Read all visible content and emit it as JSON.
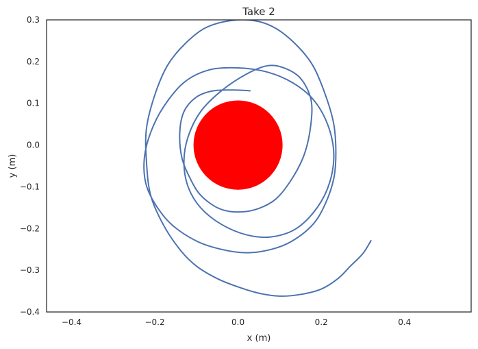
{
  "chart_data": {
    "type": "line",
    "title": "Take 2",
    "xlabel": "x (m)",
    "ylabel": "y (m)",
    "xlim": [
      -0.46,
      0.56
    ],
    "ylim": [
      -0.4,
      0.3
    ],
    "xticks": [
      -0.4,
      -0.2,
      0.0,
      0.2,
      0.4
    ],
    "xtick_labels": [
      "−0.4",
      "−0.2",
      "0.0",
      "0.2",
      "0.4"
    ],
    "yticks": [
      -0.4,
      -0.3,
      -0.2,
      -0.1,
      0.0,
      0.1,
      0.2,
      0.3
    ],
    "ytick_labels": [
      "−0.4",
      "−0.3",
      "−0.2",
      "−0.1",
      "0.0",
      "0.1",
      "0.2",
      "0.3"
    ],
    "grid": false,
    "series": [
      {
        "color": "#4c72b0",
        "x": [
          0.32,
          0.3,
          0.27,
          0.24,
          0.2,
          0.15,
          0.1,
          0.05,
          0.0,
          -0.05,
          -0.1,
          -0.14,
          -0.18,
          -0.21,
          -0.22,
          -0.22,
          -0.2,
          -0.17,
          -0.13,
          -0.08,
          -0.02,
          0.04,
          0.09,
          0.14,
          0.18,
          0.21,
          0.23,
          0.235,
          0.23,
          0.21,
          0.18,
          0.13,
          0.08,
          0.02,
          -0.04,
          -0.1,
          -0.16,
          -0.2,
          -0.222,
          -0.225,
          -0.21,
          -0.18,
          -0.13,
          -0.07,
          0.0,
          0.07,
          0.13,
          0.18,
          0.215,
          0.23,
          0.22,
          0.19,
          0.14,
          0.08,
          0.02,
          -0.04,
          -0.09,
          -0.12,
          -0.13,
          -0.12,
          -0.09,
          -0.04,
          0.02,
          0.07,
          0.11,
          0.15,
          0.175,
          0.175,
          0.16,
          0.13,
          0.09,
          0.04,
          -0.01,
          -0.05,
          -0.09,
          -0.115,
          -0.135,
          -0.14,
          -0.13,
          -0.1,
          -0.06,
          -0.01,
          0.03
        ],
        "y": [
          -0.228,
          -0.26,
          -0.29,
          -0.32,
          -0.345,
          -0.358,
          -0.362,
          -0.355,
          -0.34,
          -0.32,
          -0.29,
          -0.25,
          -0.19,
          -0.12,
          -0.04,
          0.04,
          0.12,
          0.19,
          0.24,
          0.28,
          0.298,
          0.298,
          0.28,
          0.24,
          0.19,
          0.12,
          0.05,
          -0.02,
          -0.08,
          -0.14,
          -0.19,
          -0.23,
          -0.25,
          -0.258,
          -0.25,
          -0.23,
          -0.19,
          -0.14,
          -0.09,
          -0.03,
          0.03,
          0.09,
          0.15,
          0.18,
          0.185,
          0.175,
          0.15,
          0.11,
          0.05,
          -0.02,
          -0.09,
          -0.15,
          -0.2,
          -0.22,
          -0.215,
          -0.19,
          -0.15,
          -0.1,
          -0.04,
          0.02,
          0.08,
          0.13,
          0.17,
          0.19,
          0.185,
          0.16,
          0.11,
          0.05,
          -0.02,
          -0.08,
          -0.13,
          -0.155,
          -0.16,
          -0.15,
          -0.12,
          -0.08,
          -0.03,
          0.03,
          0.08,
          0.115,
          0.13,
          0.132,
          0.13
        ]
      }
    ],
    "circle": {
      "color": "#ff0000",
      "cx": 0.0,
      "cy": 0.0,
      "r": 0.107
    }
  }
}
